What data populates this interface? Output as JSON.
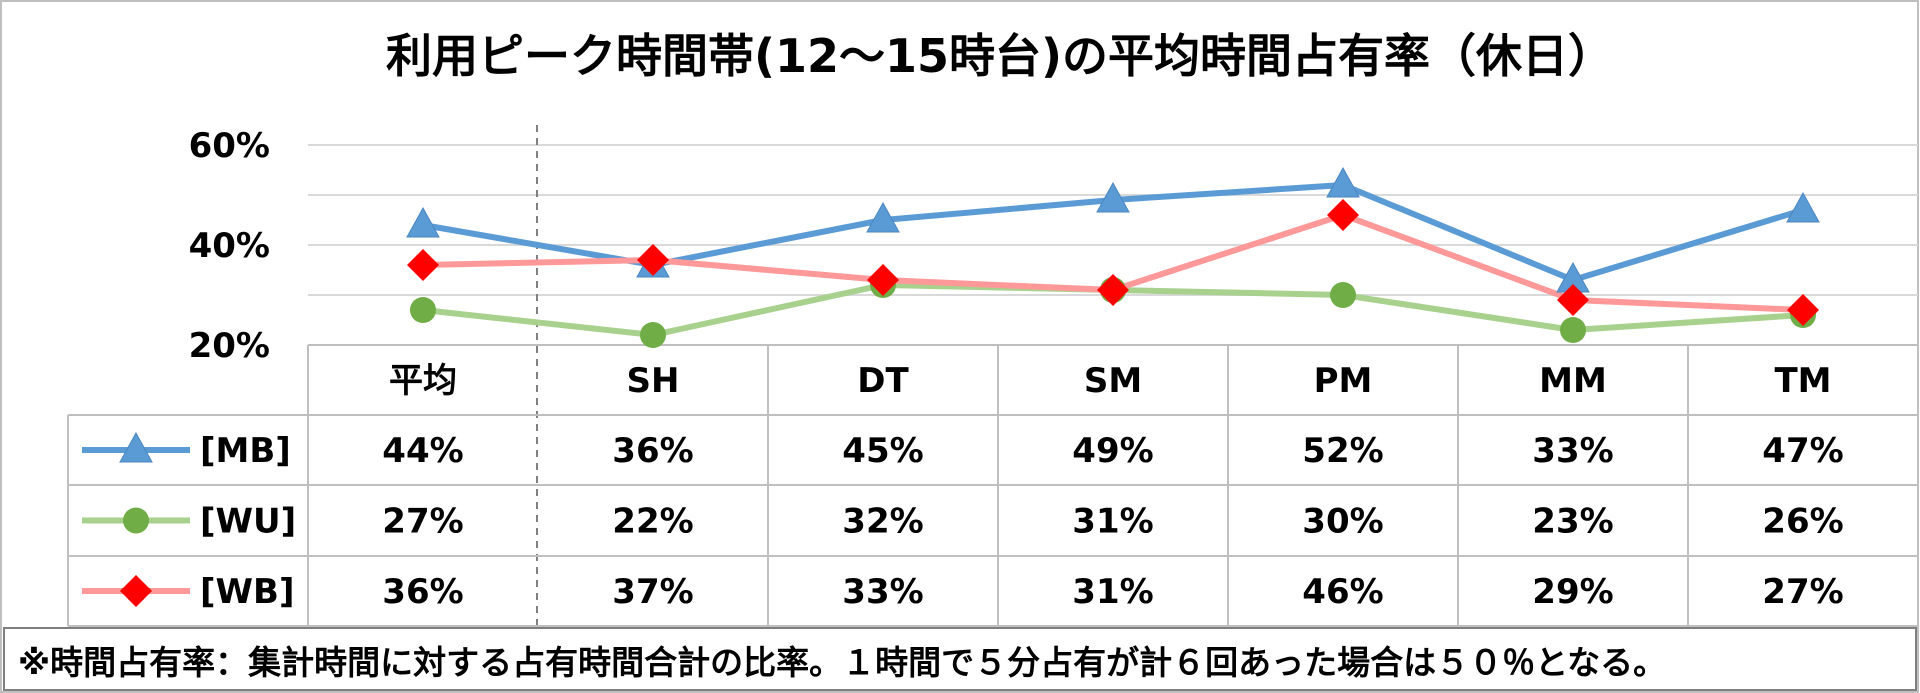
{
  "chart_data": {
    "type": "line",
    "title": "利用ピーク時間帯(12～15時台)の平均時間占有率（休日）",
    "categories": [
      "平均",
      "SH",
      "DT",
      "SM",
      "PM",
      "MM",
      "TM"
    ],
    "y_ticks": [
      "60%",
      "40%",
      "20%"
    ],
    "ylim": [
      0.2,
      0.6
    ],
    "grid": true,
    "legend": "data-table-left",
    "series": [
      {
        "name": "[MB]",
        "values": [
          0.44,
          0.36,
          0.45,
          0.49,
          0.52,
          0.33,
          0.47
        ],
        "labels": [
          "44%",
          "36%",
          "45%",
          "49%",
          "52%",
          "33%",
          "47%"
        ],
        "color": "#5b9bd5",
        "marker": "triangle"
      },
      {
        "name": "[WU]",
        "values": [
          0.27,
          0.22,
          0.32,
          0.31,
          0.3,
          0.23,
          0.26
        ],
        "labels": [
          "27%",
          "22%",
          "32%",
          "31%",
          "30%",
          "23%",
          "26%"
        ],
        "line_color": "#a9d18e",
        "marker_color": "#70ad47",
        "marker": "circle"
      },
      {
        "name": "[WB]",
        "values": [
          0.36,
          0.37,
          0.33,
          0.31,
          0.46,
          0.29,
          0.27
        ],
        "labels": [
          "36%",
          "37%",
          "33%",
          "31%",
          "46%",
          "29%",
          "27%"
        ],
        "line_color": "#ff9999",
        "marker_color": "#ff0000",
        "marker": "diamond"
      }
    ],
    "footnote": "※時間占有率：集計時間に対する占有時間合計の比率。１時間で５分占有が計６回あった場合は５０％となる。"
  }
}
